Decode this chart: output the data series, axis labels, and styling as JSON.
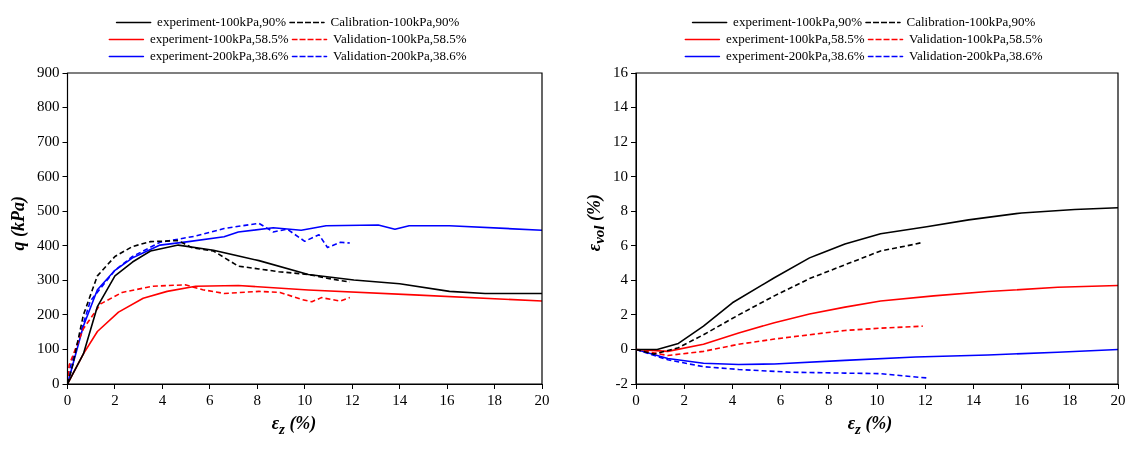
{
  "chart_data": [
    {
      "type": "line",
      "xlabel": "ε$_{z}$ (%)",
      "ylabel": "q (kPa)",
      "xlim": [
        0,
        20
      ],
      "xticks": [
        0,
        2,
        4,
        6,
        8,
        10,
        12,
        14,
        16,
        18,
        20
      ],
      "ylim": [
        0,
        900
      ],
      "yticks": [
        0,
        100,
        200,
        300,
        400,
        500,
        600,
        700,
        800,
        900
      ],
      "grid": false,
      "legend": "top",
      "marker": "none",
      "series": [
        {
          "name": "experiment-100kPa,90%",
          "color": "#000000",
          "line_style": "solid",
          "x": [
            0,
            0.67,
            1.26,
            2,
            2.74,
            3.5,
            4.67,
            6.15,
            8.07,
            10.15,
            12.07,
            14,
            16.1,
            17.6,
            20
          ],
          "values": [
            0,
            87,
            224,
            313,
            353,
            385,
            402,
            387,
            357,
            317,
            301,
            290,
            268,
            262,
            262
          ]
        },
        {
          "name": "Calibration-100kPa,90%",
          "color": "#000000",
          "line_style": "dashed",
          "x": [
            0,
            0.22,
            0.67,
            1.26,
            2,
            2.74,
            3.5,
            4.67,
            5.26,
            6.15,
            7.2,
            8.07,
            8.9,
            10.15,
            11.04,
            11.9
          ],
          "values": [
            0,
            55,
            200,
            313,
            369,
            398,
            412,
            415,
            394,
            385,
            341,
            333,
            325,
            317,
            305,
            295
          ]
        },
        {
          "name": "experiment-100kPa,58.5%",
          "color": "#ff0000",
          "line_style": "solid",
          "x": [
            0,
            0.67,
            1.26,
            2.15,
            3.19,
            4.2,
            5.4,
            7.2,
            10.15,
            14.6,
            20
          ],
          "values": [
            0,
            87,
            152,
            208,
            248,
            268,
            283,
            285,
            272,
            258,
            240
          ]
        },
        {
          "name": "Validation-100kPa,58.5%",
          "color": "#ff0000",
          "line_style": "dashed",
          "x": [
            0,
            0.07,
            0.67,
            1.4,
            2.3,
            3.6,
            4.96,
            5.7,
            6.6,
            8.07,
            8.96,
            9.85,
            10.3,
            10.7,
            11.5,
            11.9
          ],
          "values": [
            0,
            55,
            160,
            232,
            265,
            283,
            287,
            273,
            262,
            268,
            265,
            245,
            238,
            250,
            240,
            250
          ]
        },
        {
          "name": "experiment-200kPa,38.6%",
          "color": "#0000ff",
          "line_style": "solid",
          "x": [
            0,
            0.67,
            1.26,
            2,
            2.74,
            3.9,
            5.1,
            6.6,
            7.2,
            8.67,
            9.85,
            10.9,
            13.1,
            13.8,
            14.4,
            16.1,
            20
          ],
          "values": [
            0,
            168,
            273,
            329,
            365,
            402,
            412,
            426,
            440,
            452,
            445,
            458,
            460,
            448,
            458,
            458,
            445
          ]
        },
        {
          "name": "Validation-200kPa,38.6%",
          "color": "#0000ff",
          "line_style": "dashed",
          "x": [
            0,
            0.07,
            0.96,
            2,
            2.74,
            3.9,
            5.4,
            6.6,
            8.07,
            8.67,
            9.26,
            10,
            10.6,
            10.96,
            11.5,
            11.9
          ],
          "values": [
            0,
            39,
            240,
            329,
            369,
            410,
            428,
            450,
            465,
            440,
            448,
            413,
            432,
            395,
            410,
            408
          ]
        }
      ]
    },
    {
      "type": "line",
      "xlabel": "ε$_{z}$ (%)",
      "ylabel": "ε$_{vol}$ (%)",
      "xlim": [
        0,
        20
      ],
      "xticks": [
        0,
        2,
        4,
        6,
        8,
        10,
        12,
        14,
        16,
        18,
        20
      ],
      "ylim": [
        -2,
        16
      ],
      "yticks": [
        -2,
        0,
        2,
        4,
        6,
        8,
        10,
        12,
        14,
        16
      ],
      "grid": false,
      "legend": "top",
      "marker": "none",
      "series": [
        {
          "name": "experiment-100kPa,90%",
          "color": "#000000",
          "line_style": "solid",
          "x": [
            0,
            0.88,
            1.76,
            2.8,
            4,
            5.74,
            7.2,
            8.67,
            10.15,
            12.06,
            13.8,
            16,
            18.2,
            20
          ],
          "values": [
            0,
            0,
            0.35,
            1.35,
            2.7,
            4.15,
            5.3,
            6.1,
            6.7,
            7.1,
            7.5,
            7.9,
            8.1,
            8.2
          ]
        },
        {
          "name": "Calibration-100kPa,90%",
          "color": "#000000",
          "line_style": "dashed",
          "x": [
            0,
            0.74,
            1.76,
            2.8,
            4.26,
            5.74,
            7.2,
            8.67,
            10.15,
            11.6,
            11.9
          ],
          "values": [
            0,
            -0.27,
            0.1,
            0.85,
            2,
            3.1,
            4.1,
            4.9,
            5.7,
            6.1,
            6.2
          ]
        },
        {
          "name": "experiment-100kPa,58.5%",
          "color": "#ff0000",
          "line_style": "solid",
          "x": [
            0,
            1.32,
            2.8,
            4.26,
            5.74,
            7.2,
            8.67,
            10.15,
            12.35,
            14.6,
            17.5,
            20
          ],
          "values": [
            0,
            -0.11,
            0.3,
            0.95,
            1.55,
            2.05,
            2.45,
            2.8,
            3.1,
            3.35,
            3.6,
            3.7
          ]
        },
        {
          "name": "Validation-100kPa,58.5%",
          "color": "#ff0000",
          "line_style": "dashed",
          "x": [
            0,
            1.32,
            2.8,
            4.26,
            5.74,
            7.2,
            8.67,
            10.15,
            11.9
          ],
          "values": [
            0,
            -0.35,
            -0.11,
            0.3,
            0.6,
            0.85,
            1.1,
            1.23,
            1.35
          ]
        },
        {
          "name": "experiment-200kPa,38.6%",
          "color": "#0000ff",
          "line_style": "solid",
          "x": [
            0,
            1.32,
            2.8,
            4.26,
            5.74,
            8.67,
            11.6,
            14.6,
            17.5,
            20
          ],
          "values": [
            0,
            -0.52,
            -0.8,
            -0.87,
            -0.84,
            -0.63,
            -0.44,
            -0.32,
            -0.16,
            0
          ]
        },
        {
          "name": "Validation-200kPa,38.6%",
          "color": "#0000ff",
          "line_style": "dashed",
          "x": [
            0,
            1.32,
            2.8,
            4.26,
            6.47,
            8.67,
            10.15,
            12.06
          ],
          "values": [
            0,
            -0.6,
            -1,
            -1.16,
            -1.32,
            -1.37,
            -1.4,
            -1.65
          ]
        }
      ]
    }
  ]
}
